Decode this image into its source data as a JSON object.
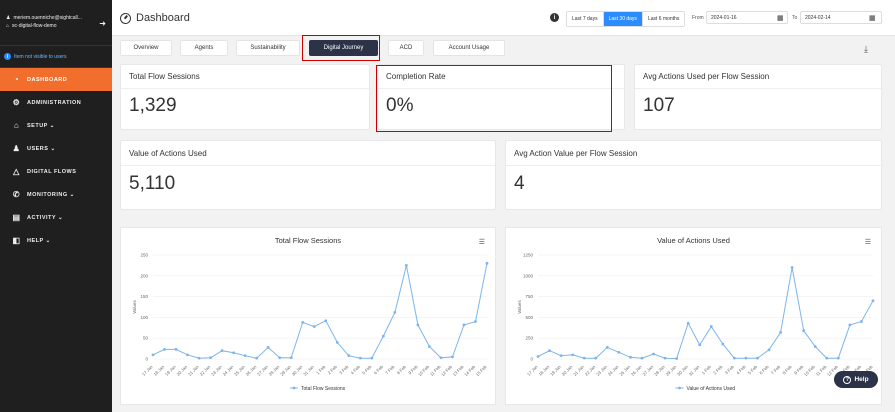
{
  "sidebar": {
    "user_email": "meriem.ouenniche@sightcall...",
    "org": "sc-digital-flow-demo",
    "notice": "Item not visible to users",
    "items": [
      {
        "label": "DASHBOARD",
        "icon": "gauge-icon"
      },
      {
        "label": "ADMINISTRATION",
        "icon": "admin-icon"
      },
      {
        "label": "SETUP ⌄",
        "icon": "home-icon"
      },
      {
        "label": "USERS ⌄",
        "icon": "users-icon"
      },
      {
        "label": "DIGITAL FLOWS",
        "icon": "flow-icon"
      },
      {
        "label": "MONITORING ⌄",
        "icon": "phone-icon"
      },
      {
        "label": "ACTIVITY ⌄",
        "icon": "document-icon"
      },
      {
        "label": "HELP ⌄",
        "icon": "book-icon"
      }
    ]
  },
  "header": {
    "title": "Dashboard",
    "ranges": [
      "Last 7 days",
      "Last 30 days",
      "Last 6 months"
    ],
    "selected_range": "Last 30 days",
    "from_label": "From",
    "from_value": "2024-01-16",
    "to_label": "To",
    "to_value": "2024-02-14"
  },
  "tabs": [
    "Overview",
    "Agents",
    "Sustainability",
    "Digital Journey",
    "ACD",
    "Account Usage"
  ],
  "selected_tab": "Digital Journey",
  "kpis": [
    {
      "title": "Total Flow Sessions",
      "value": "1,329"
    },
    {
      "title": "Completion Rate",
      "value": "0%"
    },
    {
      "title": "Avg Actions Used per Flow Session",
      "value": "107"
    },
    {
      "title": "Value of Actions Used",
      "value": "5,110"
    },
    {
      "title": "Avg Action Value per Flow Session",
      "value": "4"
    }
  ],
  "help_label": "Help",
  "chart_data": [
    {
      "type": "line",
      "title": "Total Flow Sessions",
      "ylabel": "Values",
      "ylim": [
        0,
        250
      ],
      "yticks": [
        0,
        50,
        100,
        150,
        200,
        250
      ],
      "series": [
        {
          "name": "Total Flow Sessions",
          "values": [
            10,
            23,
            23,
            10,
            2,
            3,
            20,
            15,
            8,
            2,
            28,
            3,
            3,
            88,
            78,
            92,
            40,
            8,
            2,
            2,
            55,
            112,
            225,
            82,
            30,
            3,
            5,
            82,
            90,
            230
          ]
        }
      ],
      "x": [
        "17 Jan",
        "18 Jan",
        "19 Jan",
        "20 Jan",
        "21 Jan",
        "22 Jan",
        "23 Jan",
        "24 Jan",
        "25 Jan",
        "26 Jan",
        "27 Jan",
        "28 Jan",
        "29 Jan",
        "30 Jan",
        "31 Jan",
        "1 Feb",
        "2 Feb",
        "3 Feb",
        "4 Feb",
        "5 Feb",
        "6 Feb",
        "7 Feb",
        "8 Feb",
        "9 Feb",
        "10 Feb",
        "11 Feb",
        "12 Feb",
        "13 Feb",
        "14 Feb",
        "15 Feb"
      ],
      "color": "#7cb5ec"
    },
    {
      "type": "line",
      "title": "Value of Actions Used",
      "ylabel": "Values",
      "ylim": [
        0,
        1250
      ],
      "yticks": [
        0,
        250,
        500,
        750,
        1000,
        1250
      ],
      "series": [
        {
          "name": "Value of Actions Used",
          "values": [
            30,
            100,
            40,
            50,
            10,
            10,
            140,
            80,
            20,
            10,
            60,
            10,
            5,
            430,
            170,
            390,
            180,
            10,
            10,
            10,
            110,
            320,
            1100,
            340,
            150,
            10,
            10,
            410,
            450,
            700
          ]
        }
      ],
      "x": [
        "17 Jan",
        "18 Jan",
        "19 Jan",
        "20 Jan",
        "21 Jan",
        "22 Jan",
        "23 Jan",
        "24 Jan",
        "25 Jan",
        "26 Jan",
        "27 Jan",
        "28 Jan",
        "29 Jan",
        "30 Jan",
        "31 Jan",
        "1 Feb",
        "2 Feb",
        "3 Feb",
        "4 Feb",
        "5 Feb",
        "6 Feb",
        "7 Feb",
        "8 Feb",
        "9 Feb",
        "10 Feb",
        "11 Feb",
        "12 Feb",
        "13 Feb",
        "14 Feb",
        "15 Feb"
      ],
      "color": "#7cb5ec"
    }
  ]
}
